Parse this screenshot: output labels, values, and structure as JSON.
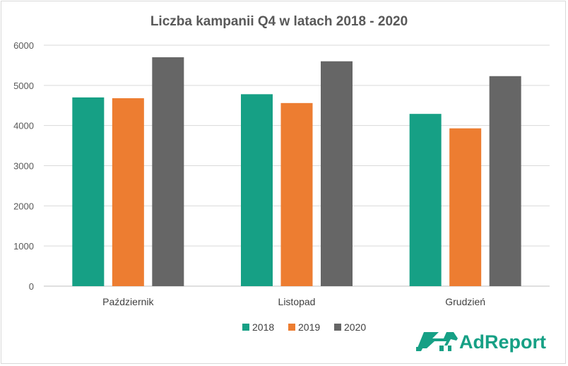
{
  "chart_data": {
    "type": "bar",
    "title": "Liczba kampanii Q4 w latach 2018 - 2020",
    "categories": [
      "Październik",
      "Listopad",
      "Grudzień"
    ],
    "series": [
      {
        "name": "2018",
        "color": "#16a085",
        "values": [
          4700,
          4780,
          4290
        ]
      },
      {
        "name": "2019",
        "color": "#ed7d31",
        "values": [
          4680,
          4560,
          3930
        ]
      },
      {
        "name": "2020",
        "color": "#666666",
        "values": [
          5700,
          5600,
          5230
        ]
      }
    ],
    "yticks": [
      "0",
      "1000",
      "2000",
      "3000",
      "4000",
      "5000",
      "6000"
    ],
    "ylim": [
      0,
      6000
    ],
    "xlabel": "",
    "ylabel": "",
    "grid": true,
    "legend_position": "bottom"
  },
  "logo": {
    "text": "AdReport",
    "color": "#16a085",
    "icon": "horse-logo-icon"
  }
}
